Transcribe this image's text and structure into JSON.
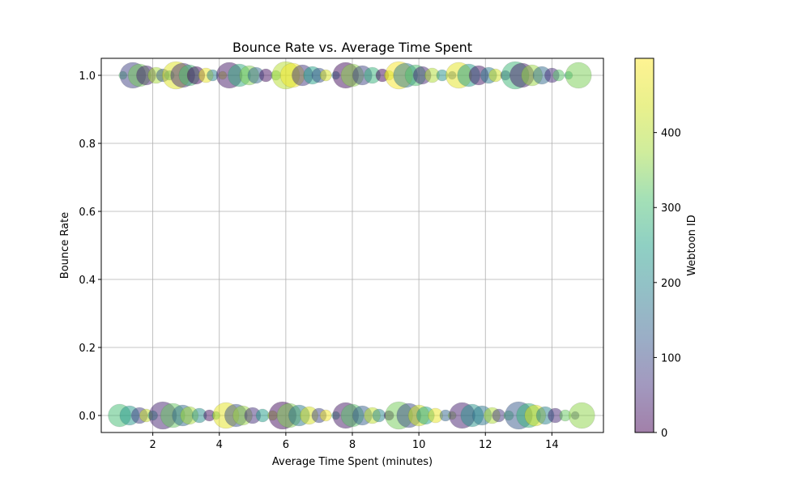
{
  "chart_data": {
    "type": "scatter",
    "title": "Bounce Rate vs. Average Time Spent",
    "xlabel": "Average Time Spent (minutes)",
    "ylabel": "Bounce Rate",
    "xlim": [
      0.45,
      15.55
    ],
    "ylim": [
      -0.05,
      1.05
    ],
    "x_ticks": [
      2,
      4,
      6,
      8,
      10,
      12,
      14
    ],
    "y_ticks": [
      0.0,
      0.2,
      0.4,
      0.6,
      0.8,
      1.0
    ],
    "x_tick_labels": [
      "2",
      "4",
      "6",
      "8",
      "10",
      "12",
      "14"
    ],
    "y_tick_labels": [
      "0.0",
      "0.2",
      "0.4",
      "0.6",
      "0.8",
      "1.0"
    ],
    "grid": true,
    "colormap": "viridis",
    "alpha": 0.5,
    "colorbar": {
      "label": "Webtoon ID",
      "range": [
        0,
        499
      ],
      "ticks": [
        0,
        100,
        200,
        300,
        400
      ],
      "tick_labels": [
        "0",
        "100",
        "200",
        "300",
        "400"
      ]
    },
    "series": [
      {
        "points": [
          [
            1.1,
            1,
            312
          ],
          [
            1.4,
            1,
            85
          ],
          [
            1.6,
            1,
            340
          ],
          [
            1.8,
            1,
            42
          ],
          [
            2.1,
            1,
            380
          ],
          [
            2.3,
            1,
            120
          ],
          [
            2.5,
            1,
            230
          ],
          [
            2.7,
            1,
            450
          ],
          [
            2.9,
            1,
            60
          ],
          [
            3.1,
            1,
            300
          ],
          [
            3.3,
            1,
            10
          ],
          [
            3.6,
            1,
            470
          ],
          [
            3.8,
            1,
            190
          ],
          [
            4.1,
            1,
            420
          ],
          [
            4.3,
            1,
            30
          ],
          [
            4.6,
            1,
            270
          ],
          [
            4.9,
            1,
            350
          ],
          [
            5.1,
            1,
            140
          ],
          [
            5.4,
            1,
            20
          ],
          [
            5.7,
            1,
            330
          ],
          [
            6.0,
            1,
            400
          ],
          [
            6.2,
            1,
            480
          ],
          [
            6.5,
            1,
            70
          ],
          [
            6.8,
            1,
            250
          ],
          [
            7.0,
            1,
            110
          ],
          [
            7.2,
            1,
            440
          ],
          [
            7.5,
            1,
            200
          ],
          [
            7.8,
            1,
            15
          ],
          [
            8.0,
            1,
            360
          ],
          [
            8.3,
            1,
            90
          ],
          [
            8.6,
            1,
            280
          ],
          [
            8.9,
            1,
            5
          ],
          [
            9.1,
            1,
            410
          ],
          [
            9.4,
            1,
            490
          ],
          [
            9.6,
            1,
            170
          ],
          [
            9.9,
            1,
            310
          ],
          [
            10.1,
            1,
            50
          ],
          [
            10.4,
            1,
            390
          ],
          [
            10.7,
            1,
            220
          ],
          [
            11.0,
            1,
            130
          ],
          [
            11.2,
            1,
            460
          ],
          [
            11.5,
            1,
            240
          ],
          [
            11.8,
            1,
            25
          ],
          [
            12.1,
            1,
            180
          ],
          [
            12.3,
            1,
            430
          ],
          [
            12.6,
            1,
            100
          ],
          [
            12.9,
            1,
            290
          ],
          [
            13.1,
            1,
            35
          ],
          [
            13.4,
            1,
            370
          ],
          [
            13.7,
            1,
            150
          ],
          [
            14.0,
            1,
            55
          ],
          [
            14.2,
            1,
            320
          ],
          [
            14.5,
            1,
            260
          ],
          [
            14.8,
            1,
            345
          ],
          [
            1.0,
            0,
            300
          ],
          [
            1.3,
            0,
            230
          ],
          [
            1.6,
            0,
            80
          ],
          [
            1.8,
            0,
            420
          ],
          [
            2.0,
            0,
            260
          ],
          [
            2.3,
            0,
            45
          ],
          [
            2.6,
            0,
            330
          ],
          [
            2.9,
            0,
            150
          ],
          [
            3.1,
            0,
            380
          ],
          [
            3.4,
            0,
            210
          ],
          [
            3.7,
            0,
            20
          ],
          [
            3.9,
            0,
            300
          ],
          [
            4.2,
            0,
            460
          ],
          [
            4.5,
            0,
            110
          ],
          [
            4.7,
            0,
            370
          ],
          [
            5.0,
            0,
            60
          ],
          [
            5.3,
            0,
            240
          ],
          [
            5.6,
            0,
            400
          ],
          [
            5.9,
            0,
            15
          ],
          [
            6.1,
            0,
            350
          ],
          [
            6.4,
            0,
            180
          ],
          [
            6.7,
            0,
            440
          ],
          [
            7.0,
            0,
            90
          ],
          [
            7.2,
            0,
            480
          ],
          [
            7.5,
            0,
            270
          ],
          [
            7.8,
            0,
            30
          ],
          [
            8.0,
            0,
            320
          ],
          [
            8.3,
            0,
            130
          ],
          [
            8.6,
            0,
            410
          ],
          [
            8.8,
            0,
            200
          ],
          [
            9.1,
            0,
            10
          ],
          [
            9.4,
            0,
            340
          ],
          [
            9.7,
            0,
            100
          ],
          [
            10.0,
            0,
            430
          ],
          [
            10.2,
            0,
            250
          ],
          [
            10.5,
            0,
            470
          ],
          [
            10.8,
            0,
            140
          ],
          [
            11.0,
            0,
            360
          ],
          [
            11.3,
            0,
            40
          ],
          [
            11.6,
            0,
            220
          ],
          [
            11.9,
            0,
            170
          ],
          [
            12.2,
            0,
            390
          ],
          [
            12.4,
            0,
            70
          ],
          [
            12.7,
            0,
            310
          ],
          [
            13.0,
            0,
            120
          ],
          [
            13.3,
            0,
            280
          ],
          [
            13.5,
            0,
            450
          ],
          [
            13.8,
            0,
            190
          ],
          [
            14.1,
            0,
            50
          ],
          [
            14.4,
            0,
            330
          ],
          [
            14.7,
            0,
            80
          ],
          [
            14.9,
            0,
            360
          ]
        ]
      }
    ]
  }
}
